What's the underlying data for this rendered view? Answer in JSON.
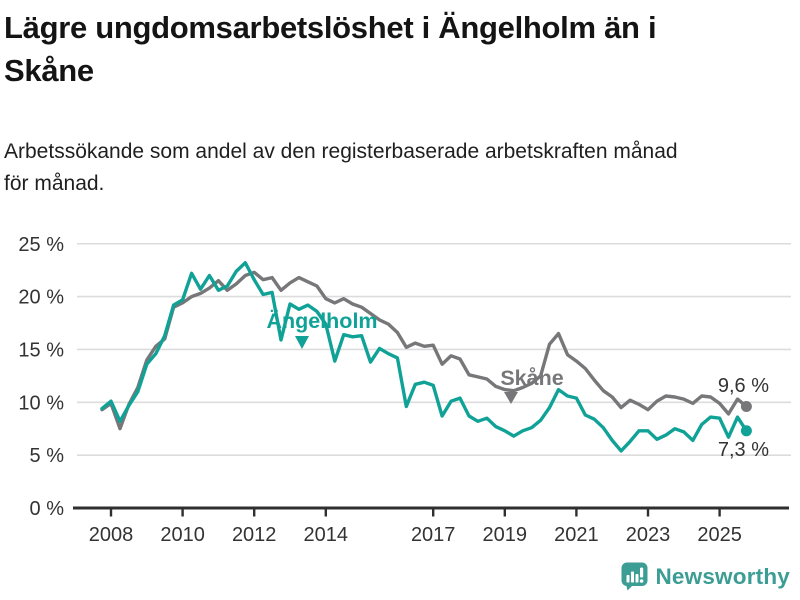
{
  "header": {
    "title_line1": "Lägre ungdomsarbetslöshet i Ängelholm än i",
    "title_line2": "Skåne",
    "subtitle_line1": "Arbetssökande som andel av den registerbaserade arbetskraften månad",
    "subtitle_line2": "för månad."
  },
  "footer": {
    "brand": "Newsworthy"
  },
  "colors": {
    "angelholm": "#10a297",
    "skane": "#77777a",
    "brand_teal": "#3b9d93",
    "axis_text": "#333333",
    "gridline": "#dcdcdc"
  },
  "chart_data": {
    "type": "line",
    "title": "Lägre ungdomsarbetslöshet i Ängelholm än i Skåne",
    "subtitle": "Arbetssökande som andel av den registerbaserade arbetskraften månad för månad.",
    "unit": "%",
    "ylim": [
      0,
      25
    ],
    "x_start": 2007.75,
    "x_step": 0.25,
    "x_range_note": "quarterly estimates read from monthly curve, autumn 2007 to autumn 2025",
    "grid": true,
    "y_ticks": [
      {
        "v": 0,
        "label": "0 %"
      },
      {
        "v": 5,
        "label": "5 %"
      },
      {
        "v": 10,
        "label": "10 %"
      },
      {
        "v": 15,
        "label": "15 %"
      },
      {
        "v": 20,
        "label": "20 %"
      },
      {
        "v": 25,
        "label": "25 %"
      }
    ],
    "x_ticks": [
      {
        "v": 2008,
        "label": "2008"
      },
      {
        "v": 2010,
        "label": "2010"
      },
      {
        "v": 2012,
        "label": "2012"
      },
      {
        "v": 2014,
        "label": "2014"
      },
      {
        "v": 2017,
        "label": "2017"
      },
      {
        "v": 2019,
        "label": "2019"
      },
      {
        "v": 2021,
        "label": "2021"
      },
      {
        "v": 2023,
        "label": "2023"
      },
      {
        "v": 2025,
        "label": "2025"
      }
    ],
    "series": [
      {
        "name": "Skåne",
        "label": "Skåne",
        "color": "#77777a",
        "end_value": 9.6,
        "end_label": "9,6 %",
        "values": [
          9.3,
          9.9,
          7.5,
          9.8,
          11.4,
          14.0,
          15.3,
          16.0,
          19.0,
          19.4,
          20.0,
          20.3,
          20.8,
          21.5,
          20.6,
          21.2,
          22.0,
          22.3,
          21.6,
          21.8,
          20.6,
          21.3,
          21.8,
          21.4,
          21.0,
          19.8,
          19.4,
          19.8,
          19.3,
          19.0,
          18.4,
          17.8,
          17.4,
          16.6,
          15.2,
          15.6,
          15.3,
          15.4,
          13.6,
          14.4,
          14.1,
          12.6,
          12.4,
          12.2,
          11.5,
          11.2,
          11.1,
          11.4,
          11.8,
          12.5,
          15.5,
          16.5,
          14.5,
          13.9,
          13.2,
          12.1,
          11.1,
          10.5,
          9.5,
          10.2,
          9.8,
          9.3,
          10.1,
          10.6,
          10.5,
          10.3,
          9.9,
          10.6,
          10.5,
          9.9,
          8.9,
          10.3,
          9.6
        ]
      },
      {
        "name": "Ängelholm",
        "label": "Ängelholm",
        "color": "#10a297",
        "end_value": 7.3,
        "end_label": "7,3 %",
        "values": [
          9.4,
          10.1,
          8.2,
          9.7,
          11.0,
          13.6,
          14.6,
          16.3,
          19.2,
          19.7,
          22.2,
          20.7,
          22.0,
          20.6,
          21.0,
          22.4,
          23.2,
          21.6,
          20.2,
          20.4,
          15.9,
          19.3,
          18.8,
          19.2,
          18.6,
          17.4,
          13.9,
          16.4,
          16.2,
          16.3,
          13.8,
          15.1,
          14.6,
          14.2,
          9.6,
          11.7,
          11.9,
          11.6,
          8.7,
          10.1,
          10.4,
          8.7,
          8.2,
          8.5,
          7.7,
          7.3,
          6.8,
          7.3,
          7.6,
          8.3,
          9.5,
          11.2,
          10.6,
          10.4,
          8.8,
          8.4,
          7.6,
          6.4,
          5.4,
          6.3,
          7.3,
          7.3,
          6.5,
          6.9,
          7.5,
          7.2,
          6.4,
          7.9,
          8.6,
          8.5,
          6.7,
          8.6,
          7.3
        ]
      }
    ],
    "legend_position": "inline-labels"
  }
}
